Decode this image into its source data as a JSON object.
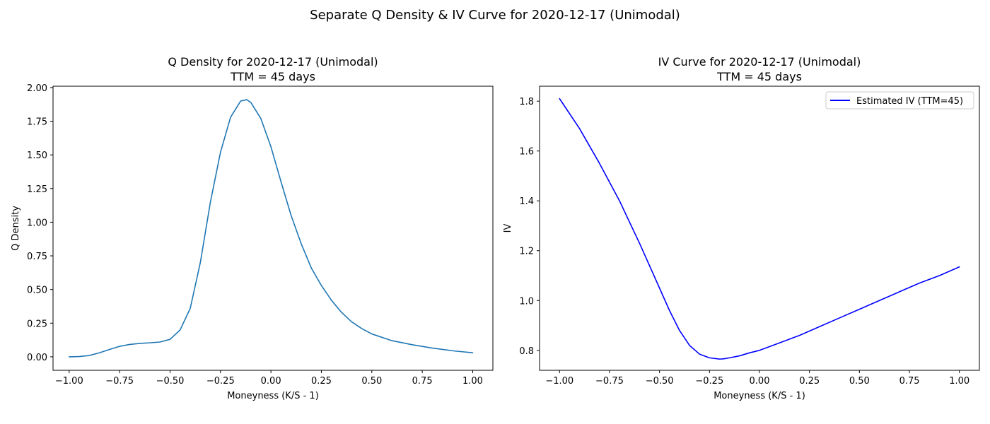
{
  "figure": {
    "suptitle": "Separate Q Density & IV Curve for 2020-12-17 (Unimodal)"
  },
  "chart_data": [
    {
      "type": "line",
      "title_line1": "Q Density for 2020-12-17 (Unimodal)",
      "title_line2": "TTM = 45 days",
      "xlabel": "Moneyness (K/S - 1)",
      "ylabel": "Q Density",
      "xlim": [
        -1.08,
        1.1
      ],
      "ylim": [
        -0.1,
        2.01
      ],
      "xticks": [
        -1.0,
        -0.75,
        -0.5,
        -0.25,
        0.0,
        0.25,
        0.5,
        0.75,
        1.0
      ],
      "xtick_labels": [
        "−1.00",
        "−0.75",
        "−0.50",
        "−0.25",
        "0.00",
        "0.25",
        "0.50",
        "0.75",
        "1.00"
      ],
      "yticks": [
        0.0,
        0.25,
        0.5,
        0.75,
        1.0,
        1.25,
        1.5,
        1.75,
        2.0
      ],
      "ytick_labels": [
        "0.00",
        "0.25",
        "0.50",
        "0.75",
        "1.00",
        "1.25",
        "1.50",
        "1.75",
        "2.00"
      ],
      "grid": false,
      "series": [
        {
          "color": "#1f77b4",
          "x": [
            -1.0,
            -0.95,
            -0.9,
            -0.85,
            -0.8,
            -0.75,
            -0.7,
            -0.65,
            -0.6,
            -0.55,
            -0.5,
            -0.45,
            -0.4,
            -0.35,
            -0.3,
            -0.25,
            -0.2,
            -0.15,
            -0.12,
            -0.1,
            -0.05,
            0.0,
            0.05,
            0.1,
            0.15,
            0.2,
            0.25,
            0.3,
            0.35,
            0.4,
            0.45,
            0.5,
            0.6,
            0.7,
            0.8,
            0.9,
            1.0
          ],
          "y": [
            0.0,
            0.002,
            0.01,
            0.03,
            0.055,
            0.078,
            0.092,
            0.1,
            0.104,
            0.11,
            0.13,
            0.2,
            0.36,
            0.7,
            1.15,
            1.52,
            1.78,
            1.9,
            1.91,
            1.89,
            1.77,
            1.56,
            1.3,
            1.05,
            0.84,
            0.66,
            0.53,
            0.42,
            0.33,
            0.26,
            0.21,
            0.17,
            0.12,
            0.09,
            0.065,
            0.045,
            0.03
          ]
        }
      ]
    },
    {
      "type": "line",
      "title_line1": "IV Curve for 2020-12-17 (Unimodal)",
      "title_line2": "TTM = 45 days",
      "xlabel": "Moneyness (K/S - 1)",
      "ylabel": "IV",
      "xlim": [
        -1.1,
        1.1
      ],
      "ylim": [
        0.72,
        1.86
      ],
      "xticks": [
        -1.0,
        -0.75,
        -0.5,
        -0.25,
        0.0,
        0.25,
        0.5,
        0.75,
        1.0
      ],
      "xtick_labels": [
        "−1.00",
        "−0.75",
        "−0.50",
        "−0.25",
        "0.00",
        "0.25",
        "0.50",
        "0.75",
        "1.00"
      ],
      "yticks": [
        0.8,
        1.0,
        1.2,
        1.4,
        1.6,
        1.8
      ],
      "ytick_labels": [
        "0.8",
        "1.0",
        "1.2",
        "1.4",
        "1.6",
        "1.8"
      ],
      "grid": false,
      "legend_position": "top-right",
      "series": [
        {
          "name": "Estimated IV (TTM=45)",
          "color": "#0000ff",
          "x": [
            -1.0,
            -0.9,
            -0.8,
            -0.7,
            -0.6,
            -0.5,
            -0.45,
            -0.4,
            -0.35,
            -0.3,
            -0.25,
            -0.2,
            -0.18,
            -0.15,
            -0.1,
            -0.05,
            0.0,
            0.1,
            0.2,
            0.3,
            0.4,
            0.5,
            0.6,
            0.7,
            0.8,
            0.9,
            1.0
          ],
          "y": [
            1.81,
            1.69,
            1.55,
            1.4,
            1.23,
            1.05,
            0.96,
            0.88,
            0.82,
            0.785,
            0.77,
            0.765,
            0.766,
            0.77,
            0.778,
            0.79,
            0.8,
            0.83,
            0.86,
            0.895,
            0.93,
            0.965,
            1.0,
            1.035,
            1.07,
            1.1,
            1.135
          ]
        }
      ]
    }
  ]
}
